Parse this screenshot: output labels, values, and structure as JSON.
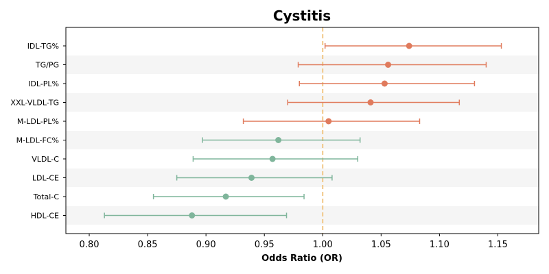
{
  "chart_data": {
    "type": "scatter",
    "title": "Cystitis",
    "xlabel": "Odds Ratio (OR)",
    "ylabel": "",
    "xlim": [
      0.78,
      1.185
    ],
    "xticks": [
      0.8,
      0.85,
      0.9,
      0.95,
      1.0,
      1.05,
      1.1,
      1.15
    ],
    "xtick_labels": [
      "0.80",
      "0.85",
      "0.90",
      "0.95",
      "1.00",
      "1.05",
      "1.10",
      "1.15"
    ],
    "reference_line": 1.0,
    "grid": false,
    "colors": {
      "risk": "#e07b5d",
      "protective": "#7fb59b",
      "reference": "#f0c27a",
      "stripe": "#f5f5f5"
    },
    "rows": [
      {
        "label": "IDL-TG%",
        "or": 1.074,
        "lower": 1.002,
        "upper": 1.153
      },
      {
        "label": "TG/PG",
        "or": 1.056,
        "lower": 0.979,
        "upper": 1.14
      },
      {
        "label": "IDL-PL%",
        "or": 1.053,
        "lower": 0.98,
        "upper": 1.13
      },
      {
        "label": "XXL-VLDL-TG",
        "or": 1.041,
        "lower": 0.97,
        "upper": 1.117
      },
      {
        "label": "M-LDL-PL%",
        "or": 1.005,
        "lower": 0.932,
        "upper": 1.083
      },
      {
        "label": "M-LDL-FC%",
        "or": 0.962,
        "lower": 0.897,
        "upper": 1.032
      },
      {
        "label": "VLDL-C",
        "or": 0.957,
        "lower": 0.889,
        "upper": 1.03
      },
      {
        "label": "LDL-CE",
        "or": 0.939,
        "lower": 0.875,
        "upper": 1.008
      },
      {
        "label": "Total-C",
        "or": 0.917,
        "lower": 0.855,
        "upper": 0.984
      },
      {
        "label": "HDL-CE",
        "or": 0.888,
        "lower": 0.813,
        "upper": 0.969
      }
    ]
  }
}
